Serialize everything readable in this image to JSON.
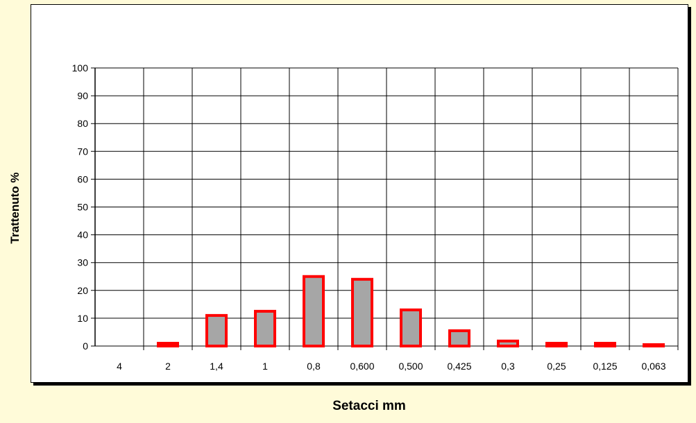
{
  "chart_data": {
    "type": "bar",
    "categories": [
      "4",
      "2",
      "1,4",
      "1",
      "0,8",
      "0,600",
      "0,500",
      "0,425",
      "0,3",
      "0,25",
      "0,125",
      "0,063"
    ],
    "values": [
      0,
      1,
      11,
      12.5,
      25,
      24,
      13,
      5.5,
      1.8,
      1,
      1,
      0.5
    ],
    "xlabel": "Setacci  mm",
    "ylabel": "Trattenuto %",
    "ylim": [
      0,
      100
    ],
    "yticks": [
      0,
      10,
      20,
      30,
      40,
      50,
      60,
      70,
      80,
      90,
      100
    ],
    "grid": true,
    "legend": "none",
    "colors": {
      "bar_fill": "#a6a6a6",
      "bar_border": "#ff0000",
      "grid": "#000000",
      "background": "#fffbd9",
      "plot_bg": "#ffffff"
    }
  }
}
